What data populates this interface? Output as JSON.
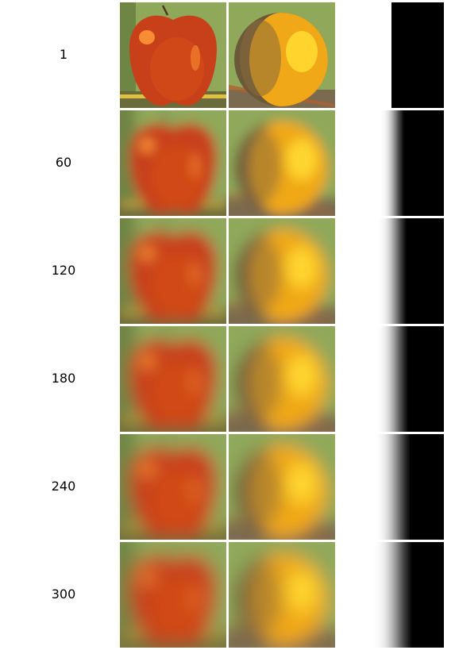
{
  "rows": [
    {
      "label": "1",
      "blur": 0
    },
    {
      "label": "60",
      "blur": 7
    },
    {
      "label": "120",
      "blur": 8.5
    },
    {
      "label": "180",
      "blur": 9.5
    },
    {
      "label": "240",
      "blur": 10.5
    },
    {
      "label": "300",
      "blur": 11.5
    }
  ],
  "columns": [
    {
      "name": "apple-image"
    },
    {
      "name": "orange-image"
    },
    {
      "name": "mask-image"
    }
  ],
  "colors": {
    "apple": "#c8401a",
    "apple_highlight": "#ff9a3a",
    "orange": "#f0a818",
    "orange_highlight": "#ffd830",
    "background_green": "#8fa85a",
    "background_dark": "#4a5a2a",
    "mask_white": "#ffffff",
    "mask_black": "#000000"
  }
}
